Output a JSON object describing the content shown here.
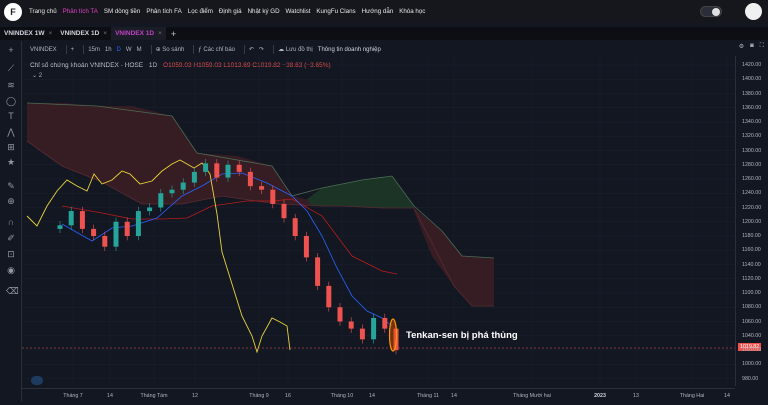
{
  "topbar": {
    "logo": "F",
    "nav": [
      "Trang chủ",
      "Phân tích TA",
      "SM dòng tiền",
      "Phân tích FA",
      "Lọc điểm",
      "Định giá",
      "Nhật ký GD",
      "Watchlist",
      "KungFu Clans",
      "Hướng dẫn",
      "Khóa học"
    ],
    "active_index": 1
  },
  "tabs": [
    {
      "label": "VNINDEX 1W",
      "close": "×"
    },
    {
      "label": "VNINDEX 1D",
      "close": "×"
    },
    {
      "label": "VNINDEX 1D",
      "close": "×",
      "selected": true
    }
  ],
  "tab_add": "+",
  "toolbar": {
    "symbol": "VNINDEX",
    "add": "+",
    "intervals": [
      "15m",
      "1h",
      "D",
      "W",
      "M"
    ],
    "active_interval": "D",
    "compare": "So sánh",
    "indicators": "Các chỉ báo",
    "undo": "↶",
    "redo": "↷",
    "save": "Lưu đồ thị",
    "info": "Thông tin doanh nghiệp",
    "right_icons": [
      "settings-icon",
      "camera-icon",
      "fullscreen-icon"
    ]
  },
  "legend": {
    "title": "Chỉ số chứng khoán VNINDEX - HOSE",
    "interval": "1D",
    "ohlc": "O1059.03  H1059.03  L1013.69  C1019.82  −38.63 (−3.65%)",
    "indicator_count": "2"
  },
  "price_axis": {
    "labels": [
      "1420.00",
      "1400.00",
      "1380.00",
      "1360.00",
      "1340.00",
      "1320.00",
      "1300.00",
      "1280.00",
      "1260.00",
      "1240.00",
      "1220.00",
      "1200.00",
      "1180.00",
      "1160.00",
      "1140.00",
      "1120.00",
      "1100.00",
      "1080.00",
      "1060.00",
      "1040.00",
      "1020.00",
      "1000.00",
      "980.00"
    ],
    "current": "1019.82"
  },
  "time_axis": {
    "labels": [
      "Tháng 7",
      "14",
      "Tháng Tám",
      "12",
      "Tháng 9",
      "16",
      "Tháng 10",
      "14",
      "Tháng 11",
      "14",
      "Tháng Mười hai",
      "2023",
      "13",
      "Tháng Hai",
      "14"
    ]
  },
  "annotation": "Tenkan-sen bị phá thủng",
  "colors": {
    "up": "#26a69a",
    "down": "#ef5350",
    "tenkan": "#2962ff",
    "kijun": "#b71c1c",
    "chikou": "#e8d43a",
    "cloud_bear": "#5a2a2e",
    "cloud_bull": "#1f3d2c",
    "accent": "#e040c0"
  },
  "chart_data": {
    "type": "candlestick",
    "title": "Chỉ số chứng khoán VNINDEX - HOSE",
    "interval": "1D",
    "ylim": [
      970,
      1430
    ],
    "x": [
      "2022-06-22",
      "2022-06-27",
      "2022-07-01",
      "2022-07-06",
      "2022-07-11",
      "2022-07-15",
      "2022-07-20",
      "2022-07-25",
      "2022-07-29",
      "2022-08-03",
      "2022-08-08",
      "2022-08-12",
      "2022-08-17",
      "2022-08-22",
      "2022-08-26",
      "2022-08-31",
      "2022-09-06",
      "2022-09-09",
      "2022-09-14",
      "2022-09-19",
      "2022-09-23",
      "2022-09-28",
      "2022-10-03",
      "2022-10-06",
      "2022-10-11",
      "2022-10-14",
      "2022-10-19",
      "2022-10-24",
      "2022-10-27",
      "2022-11-01",
      "2022-11-04"
    ],
    "series": [
      {
        "name": "VNINDEX",
        "values": [
          1195,
          1215,
          1190,
          1180,
          1165,
          1200,
          1180,
          1215,
          1220,
          1240,
          1245,
          1255,
          1270,
          1282,
          1262,
          1280,
          1270,
          1250,
          1245,
          1225,
          1205,
          1180,
          1150,
          1110,
          1080,
          1060,
          1050,
          1035,
          1065,
          1050,
          1019.82
        ]
      }
    ]
  }
}
